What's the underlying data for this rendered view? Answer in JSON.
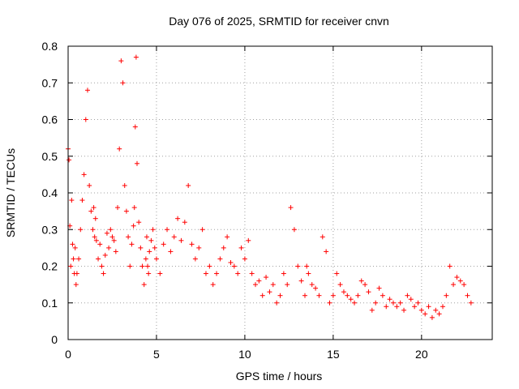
{
  "chart_data": {
    "type": "scatter",
    "title": "Day 076 of 2025, SRMTID for receiver cnvn",
    "xlabel": "GPS time / hours",
    "ylabel": "SRMTID / TECUs",
    "xlim": [
      0,
      24
    ],
    "ylim": [
      0,
      0.8
    ],
    "xticks": [
      0,
      5,
      10,
      15,
      20
    ],
    "yticks": [
      0,
      0.1,
      0.2,
      0.3,
      0.4,
      0.5,
      0.6,
      0.7,
      0.8
    ],
    "xtick_labels": [
      "0",
      "5",
      "10",
      "15",
      "20"
    ],
    "ytick_labels": [
      "0",
      "0.1",
      "0.2",
      "0.3",
      "0.4",
      "0.5",
      "0.6",
      "0.7",
      "0.8"
    ],
    "grid": true,
    "marker": "+",
    "color": "#ff0000",
    "series": [
      {
        "name": "SRMTID",
        "x": [
          0.0,
          0.05,
          0.1,
          0.15,
          0.2,
          0.25,
          0.3,
          0.35,
          0.4,
          0.45,
          0.5,
          0.6,
          0.7,
          0.8,
          0.9,
          1.0,
          1.1,
          1.2,
          1.3,
          1.4,
          1.45,
          1.5,
          1.55,
          1.6,
          1.7,
          1.8,
          1.9,
          2.0,
          2.1,
          2.2,
          2.3,
          2.4,
          2.5,
          2.6,
          2.7,
          2.8,
          2.9,
          3.0,
          3.1,
          3.2,
          3.3,
          3.4,
          3.5,
          3.6,
          3.7,
          3.75,
          3.8,
          3.85,
          3.9,
          4.0,
          4.1,
          4.2,
          4.3,
          4.4,
          4.45,
          4.5,
          4.55,
          4.6,
          4.7,
          4.8,
          4.9,
          5.0,
          5.2,
          5.4,
          5.6,
          5.8,
          6.0,
          6.2,
          6.4,
          6.6,
          6.8,
          7.0,
          7.2,
          7.4,
          7.6,
          7.8,
          8.0,
          8.2,
          8.4,
          8.6,
          8.8,
          9.0,
          9.2,
          9.4,
          9.6,
          9.8,
          10.0,
          10.2,
          10.4,
          10.6,
          10.8,
          11.0,
          11.2,
          11.4,
          11.6,
          11.8,
          12.0,
          12.2,
          12.4,
          12.6,
          12.8,
          13.0,
          13.2,
          13.4,
          13.5,
          13.6,
          13.8,
          14.0,
          14.2,
          14.4,
          14.6,
          14.8,
          15.0,
          15.2,
          15.4,
          15.6,
          15.8,
          16.0,
          16.2,
          16.4,
          16.6,
          16.8,
          17.0,
          17.2,
          17.4,
          17.6,
          17.8,
          18.0,
          18.2,
          18.4,
          18.6,
          18.8,
          19.0,
          19.2,
          19.4,
          19.6,
          19.8,
          20.0,
          20.2,
          20.4,
          20.6,
          20.8,
          21.0,
          21.2,
          21.4,
          21.6,
          21.8,
          22.0,
          22.2,
          22.4,
          22.6,
          22.8
        ],
        "y": [
          0.52,
          0.49,
          0.31,
          0.2,
          0.38,
          0.26,
          0.22,
          0.18,
          0.25,
          0.15,
          0.18,
          0.22,
          0.3,
          0.38,
          0.45,
          0.6,
          0.68,
          0.42,
          0.35,
          0.3,
          0.36,
          0.28,
          0.33,
          0.27,
          0.22,
          0.26,
          0.2,
          0.18,
          0.23,
          0.29,
          0.25,
          0.3,
          0.28,
          0.27,
          0.24,
          0.36,
          0.52,
          0.76,
          0.7,
          0.42,
          0.35,
          0.28,
          0.2,
          0.26,
          0.31,
          0.36,
          0.58,
          0.77,
          0.48,
          0.32,
          0.25,
          0.2,
          0.15,
          0.22,
          0.28,
          0.2,
          0.18,
          0.24,
          0.27,
          0.3,
          0.25,
          0.22,
          0.18,
          0.26,
          0.3,
          0.24,
          0.28,
          0.33,
          0.27,
          0.32,
          0.42,
          0.26,
          0.22,
          0.25,
          0.3,
          0.18,
          0.2,
          0.15,
          0.18,
          0.22,
          0.25,
          0.28,
          0.21,
          0.2,
          0.18,
          0.25,
          0.22,
          0.27,
          0.18,
          0.15,
          0.16,
          0.12,
          0.17,
          0.13,
          0.15,
          0.1,
          0.12,
          0.18,
          0.15,
          0.36,
          0.3,
          0.2,
          0.16,
          0.12,
          0.2,
          0.18,
          0.15,
          0.14,
          0.12,
          0.28,
          0.24,
          0.1,
          0.12,
          0.18,
          0.15,
          0.13,
          0.12,
          0.11,
          0.1,
          0.12,
          0.16,
          0.15,
          0.13,
          0.08,
          0.1,
          0.14,
          0.12,
          0.09,
          0.11,
          0.1,
          0.09,
          0.1,
          0.08,
          0.12,
          0.11,
          0.09,
          0.1,
          0.08,
          0.07,
          0.09,
          0.06,
          0.08,
          0.07,
          0.09,
          0.12,
          0.2,
          0.15,
          0.17,
          0.16,
          0.15,
          0.12,
          0.1
        ]
      }
    ]
  }
}
